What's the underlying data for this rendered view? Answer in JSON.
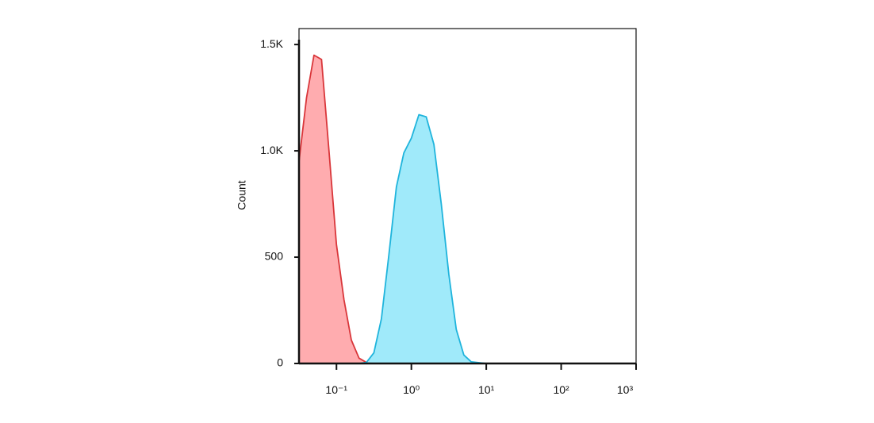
{
  "chart_data": {
    "type": "area",
    "y_label": "Count",
    "x": [
      0.0316,
      0.0398,
      0.0501,
      0.0631,
      0.0794,
      0.1,
      0.126,
      0.158,
      0.2,
      0.251,
      0.316,
      0.398,
      0.501,
      0.631,
      0.794,
      1,
      1.26,
      1.58,
      2,
      2.51,
      3.16,
      3.98,
      5.01,
      6.31,
      10,
      100,
      1000
    ],
    "series": [
      {
        "color": "#d9363a",
        "fill": "#ffa3a6",
        "values": [
          950,
          1250,
          1450,
          1430,
          1000,
          560,
          300,
          110,
          25,
          5,
          0,
          0,
          0,
          0,
          0,
          0,
          0,
          0,
          0,
          0,
          0,
          0,
          0,
          0,
          0,
          0,
          0
        ]
      },
      {
        "color": "#1fb4dc",
        "fill": "#96e8fa",
        "values": [
          0,
          0,
          0,
          0,
          0,
          0,
          0,
          0,
          0,
          5,
          50,
          210,
          510,
          830,
          990,
          1060,
          1170,
          1160,
          1030,
          750,
          420,
          160,
          40,
          8,
          0,
          0,
          0
        ]
      }
    ],
    "xlog": true,
    "xlim": [
      0.0316,
      1000
    ],
    "ylim": [
      0,
      1575
    ],
    "xticks": [
      {
        "value": 0.1,
        "label": "10⁻¹"
      },
      {
        "value": 1,
        "label": "10⁰"
      },
      {
        "value": 10,
        "label": "10¹"
      },
      {
        "value": 100,
        "label": "10²"
      },
      {
        "value": 1000,
        "label": "10³"
      }
    ],
    "yticks": [
      0,
      500,
      {
        "value": 1000,
        "label": "1.0K"
      },
      {
        "value": 1500,
        "label": "1.5K"
      }
    ]
  }
}
